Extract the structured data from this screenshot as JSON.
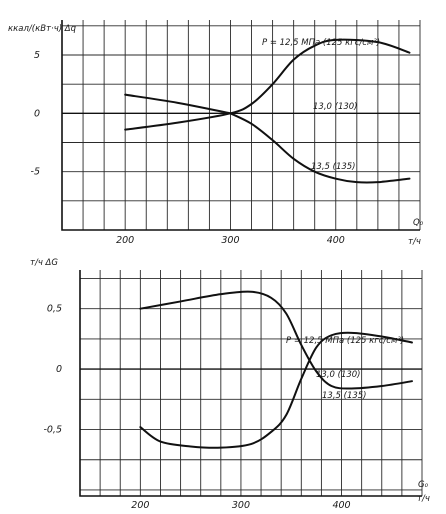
{
  "chart_data": [
    {
      "type": "line",
      "ylabel": "ккал/(кВт·ч) Δq",
      "xlabel": "т/ч",
      "panel_tag": "Q₀",
      "xlim": [
        140,
        480
      ],
      "ylim": [
        -10,
        8
      ],
      "x_ticks": [
        200,
        300,
        400
      ],
      "y_ticks": [
        5,
        0,
        -5
      ],
      "y_tick_labels": [
        "5",
        "0",
        "-5"
      ],
      "grid": true,
      "series": [
        {
          "name": "P = 12,5 МПа (125 кгс/см²)",
          "x": [
            200,
            250,
            300,
            320,
            340,
            360,
            380,
            400,
            440,
            470
          ],
          "y": [
            -1.4,
            -0.8,
            0,
            0.8,
            2.5,
            4.6,
            5.8,
            6.3,
            6.1,
            5.2
          ]
        },
        {
          "name": "13,0 (130)",
          "x": [
            200,
            250,
            300
          ],
          "y": [
            1.6,
            0.9,
            0
          ]
        },
        {
          "name": "13,5 (135)",
          "x": [
            300,
            320,
            340,
            360,
            380,
            400,
            420,
            440,
            470
          ],
          "y": [
            0,
            -0.9,
            -2.3,
            -3.9,
            -5.0,
            -5.6,
            -5.9,
            -5.9,
            -5.6
          ]
        }
      ]
    },
    {
      "type": "line",
      "ylabel": "т/ч ΔG",
      "xlabel": "т/ч",
      "panel_tag": "G₀",
      "xlim": [
        140,
        480
      ],
      "ylim": [
        -1.05,
        0.82
      ],
      "x_ticks": [
        200,
        300,
        400
      ],
      "y_ticks": [
        0.5,
        0,
        -0.5
      ],
      "y_tick_labels": [
        "0,5",
        "0",
        "-0,5"
      ],
      "grid": true,
      "series": [
        {
          "name": "P = 12,5 МПа (125 кгс/см²)",
          "x": [
            200,
            240,
            280,
            310,
            330,
            345,
            360,
            375,
            390,
            410,
            440,
            470
          ],
          "y": [
            0.5,
            0.56,
            0.62,
            0.64,
            0.59,
            0.46,
            0.2,
            -0.02,
            -0.14,
            -0.16,
            -0.14,
            -0.1
          ]
        },
        {
          "name": "13,0 (130)",
          "x": [
            200,
            220,
            250,
            280,
            310,
            330,
            345,
            360,
            375,
            390,
            410,
            440,
            470
          ],
          "y": [
            -0.48,
            -0.6,
            -0.64,
            -0.65,
            -0.62,
            -0.52,
            -0.38,
            -0.08,
            0.18,
            0.28,
            0.3,
            0.27,
            0.22
          ]
        },
        {
          "name": "13,5 (135)",
          "x": [],
          "y": []
        }
      ]
    }
  ]
}
